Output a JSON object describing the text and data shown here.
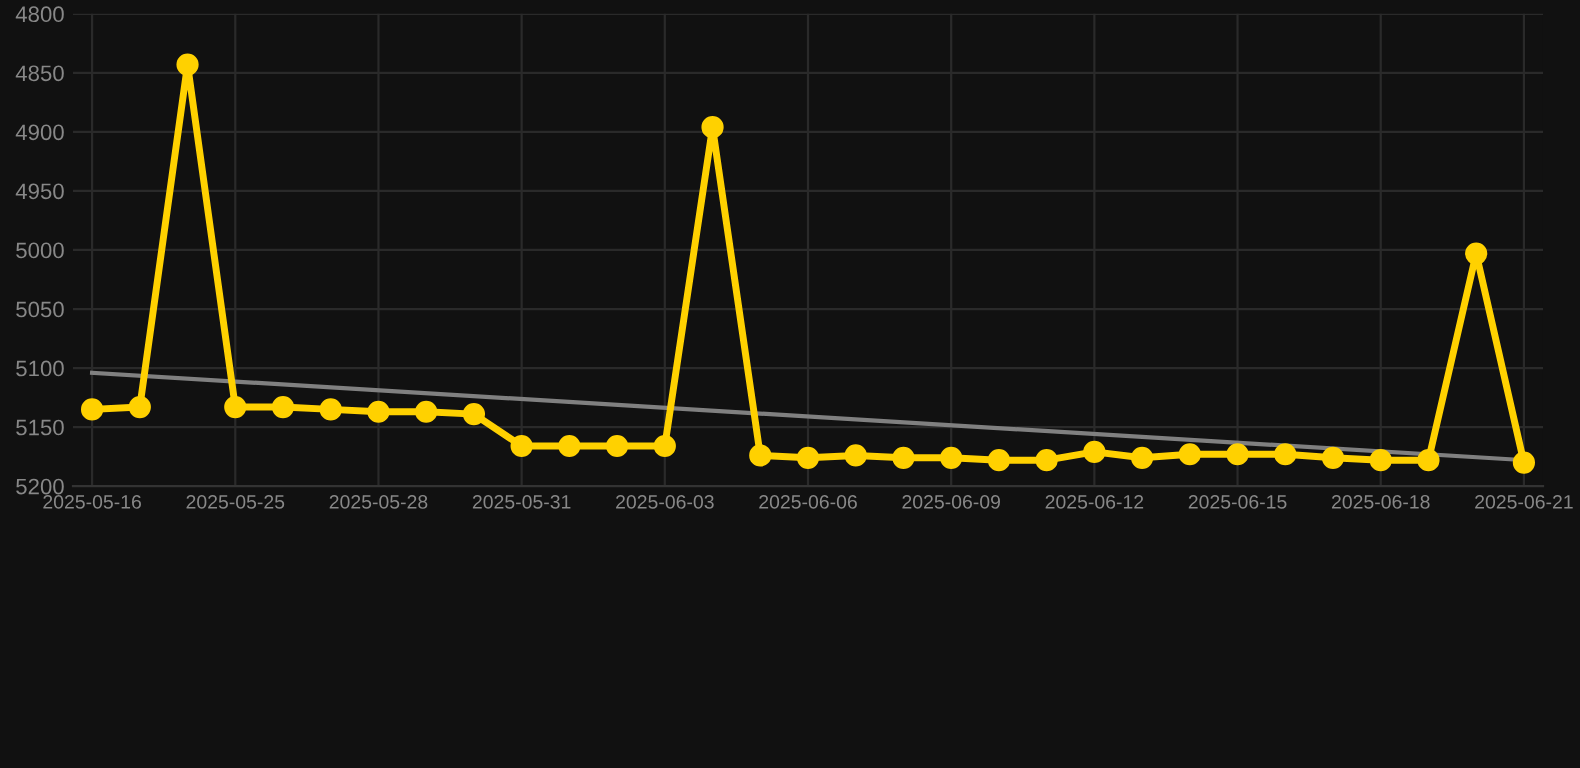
{
  "chart_data": {
    "type": "line",
    "categories": [
      "2025-05-16",
      null,
      null,
      "2025-05-25",
      null,
      null,
      "2025-05-28",
      null,
      null,
      "2025-05-31",
      null,
      null,
      "2025-06-03",
      null,
      null,
      "2025-06-06",
      null,
      null,
      "2025-06-09",
      null,
      null,
      "2025-06-12",
      null,
      null,
      "2025-06-15",
      null,
      null,
      "2025-06-18",
      null,
      null,
      "2025-06-21"
    ],
    "series": [
      {
        "color": "#ffd100",
        "marker": "circle",
        "values": [
          5135,
          5133,
          4843,
          5133,
          5133,
          5135,
          5137,
          5137,
          5139,
          5166,
          5166,
          5166,
          5166,
          4896,
          5174,
          5176,
          5174,
          5176,
          5176,
          5178,
          5178,
          5171,
          5176,
          5173,
          5173,
          5173,
          5176,
          5178,
          5178,
          5003,
          5180
        ]
      },
      {
        "type": "line",
        "color": "#808080",
        "marker": "none",
        "values": [
          5104,
          null,
          null,
          null,
          null,
          null,
          null,
          null,
          null,
          null,
          null,
          null,
          null,
          null,
          null,
          null,
          null,
          null,
          null,
          null,
          null,
          null,
          null,
          null,
          null,
          null,
          null,
          null,
          null,
          null,
          5178
        ]
      }
    ],
    "ylim": [
      5200,
      4800
    ],
    "yticks": [
      4800,
      4850,
      4900,
      4950,
      5000,
      5050,
      5100,
      5150,
      5200
    ],
    "grid": true,
    "line_style": "solid"
  }
}
